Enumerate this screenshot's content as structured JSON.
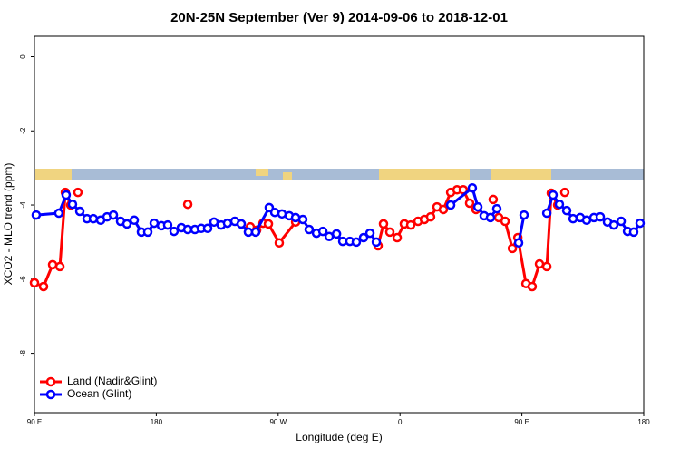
{
  "chart_data": {
    "type": "line",
    "title": "20N-25N September (Ver 9)   2014-09-06 to 2018-12-01",
    "x_label": "Longitude (deg E)",
    "y_label": "XCO2 - MLO trend (ppm)",
    "xlim": [
      90,
      540
    ],
    "xticks": [
      {
        "value": 90,
        "label": "90 E"
      },
      180,
      {
        "value": 270,
        "label": "90 W"
      },
      {
        "value": 360,
        "label": "0"
      },
      {
        "value": 450,
        "label": "90 E"
      },
      {
        "value": 540,
        "label": "180"
      }
    ],
    "ylim": [
      -9.6,
      0.55
    ],
    "yticks": [
      0,
      -2,
      -4,
      -6,
      -8
    ],
    "grid": false,
    "legend": "bottom-left",
    "series": [
      {
        "name": "Land (Nadir&Glint)",
        "color": "#ff0000",
        "x": [
          90,
          96.7,
          103.4,
          108.8,
          112.8,
          116.8,
          null,
          122.1,
          null,
          203.2,
          null,
          249.4,
          254.1,
          258.8,
          262.8,
          270.8,
          282.9,
          null,
          343.8,
          347.8,
          352.5,
          357.9,
          363.2,
          367.9,
          373.3,
          378,
          382.6,
          387.3,
          392,
          397.4,
          402.1,
          406.7,
          411.4,
          416.1,
          null,
          428.8,
          null,
          432.9,
          437.6,
          443,
          447,
          453,
          457.6,
          463,
          468.4,
          471.7,
          476.4,
          null,
          481.7
        ],
        "values": [
          -6.1,
          -6.2,
          -5.61,
          -5.66,
          -3.66,
          -4.0,
          null,
          -3.66,
          null,
          -3.98,
          null,
          -4.59,
          -4.68,
          -4.49,
          -4.51,
          -5.02,
          -4.46,
          null,
          -5.1,
          -4.51,
          -4.73,
          -4.88,
          -4.51,
          -4.54,
          -4.44,
          -4.39,
          -4.32,
          -4.05,
          -4.12,
          -3.66,
          -3.59,
          -3.59,
          -3.95,
          -4.12,
          null,
          -3.85,
          null,
          -4.34,
          -4.44,
          -5.17,
          -4.88,
          -6.12,
          -6.2,
          -5.59,
          -5.66,
          -3.68,
          -4.0,
          null,
          -3.66
        ]
      },
      {
        "name": "Ocean (Glint)",
        "color": "#0000ff",
        "x": [
          91.3,
          108,
          113.4,
          118.1,
          123.5,
          128.8,
          133.5,
          138.9,
          143.6,
          148.3,
          153.6,
          158.3,
          163.7,
          169,
          173.7,
          178.4,
          183.8,
          188.4,
          193.1,
          198.5,
          203.2,
          208.5,
          213.2,
          217.9,
          222.6,
          227.9,
          232.6,
          238,
          242.7,
          248,
          253.4,
          263.4,
          267.5,
          272.8,
          278.2,
          282.9,
          288.2,
          292.9,
          298.3,
          303,
          307.7,
          313.1,
          317.7,
          323,
          327.7,
          333.1,
          337.8,
          342.5,
          null,
          397.4,
          413.4,
          417.5,
          422.1,
          426.8,
          431.5,
          null,
          447.6,
          451.6,
          null,
          468.4,
          473,
          477.7,
          483.1,
          487.8,
          493.1,
          497.8,
          503.2,
          507.9,
          513.2,
          517.9,
          523.3,
          528,
          532.6,
          537.3
        ],
        "values": [
          -4.27,
          -4.22,
          -3.73,
          -3.98,
          -4.17,
          -4.37,
          -4.37,
          -4.41,
          -4.32,
          -4.27,
          -4.44,
          -4.51,
          -4.41,
          -4.73,
          -4.73,
          -4.49,
          -4.56,
          -4.54,
          -4.71,
          -4.61,
          -4.66,
          -4.66,
          -4.63,
          -4.63,
          -4.46,
          -4.54,
          -4.49,
          -4.44,
          -4.51,
          -4.73,
          -4.73,
          -4.07,
          -4.2,
          -4.24,
          -4.29,
          -4.34,
          -4.39,
          -4.66,
          -4.76,
          -4.71,
          -4.85,
          -4.78,
          -4.98,
          -4.98,
          -5.0,
          -4.88,
          -4.76,
          -5.0,
          null,
          -4.0,
          -3.54,
          -4.05,
          -4.29,
          -4.34,
          -4.1,
          null,
          -5.02,
          -4.27,
          null,
          -4.22,
          -3.73,
          -3.98,
          -4.15,
          -4.37,
          -4.34,
          -4.41,
          -4.34,
          -4.32,
          -4.46,
          -4.54,
          -4.44,
          -4.71,
          -4.73,
          -4.49
        ]
      }
    ]
  }
}
